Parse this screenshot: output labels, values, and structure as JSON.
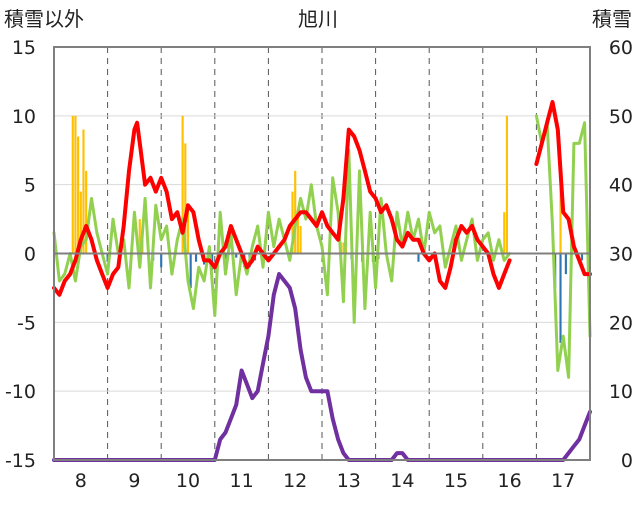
{
  "chart_data": {
    "type": "line",
    "title": "旭川",
    "ylabel_left": "積雪以外",
    "ylabel_right": "積雪",
    "ylim_left": [
      -15,
      15
    ],
    "ylim_right": [
      0,
      60
    ],
    "xlim": [
      7.5,
      17.5
    ],
    "y_ticks_left": [
      "15",
      "10",
      "5",
      "0",
      "-5",
      "-10",
      "-15"
    ],
    "y_ticks_right": [
      "60",
      "50",
      "40",
      "30",
      "20",
      "10",
      "0"
    ],
    "x_ticks": [
      "8",
      "9",
      "10",
      "11",
      "12",
      "13",
      "14",
      "15",
      "16",
      "17"
    ],
    "grid": true,
    "series_colors": {
      "temperature": "#ff0000",
      "temp_change": "#92d050",
      "precip_pos": "#ffc000",
      "precip_neg": "#2e75b6",
      "snow_depth": "#7030a0"
    },
    "series": [
      {
        "key": "temperature",
        "axis": "left",
        "x": [
          7.5,
          7.6,
          7.7,
          7.8,
          7.9,
          8.0,
          8.1,
          8.2,
          8.3,
          8.4,
          8.5,
          8.6,
          8.7,
          8.8,
          8.9,
          9.0,
          9.05,
          9.1,
          9.2,
          9.3,
          9.4,
          9.5,
          9.6,
          9.7,
          9.8,
          9.9,
          10.0,
          10.1,
          10.2,
          10.3,
          10.4,
          10.5,
          10.6,
          10.7,
          10.8,
          10.9,
          11.0,
          11.1,
          11.2,
          11.3,
          11.4,
          11.5,
          11.6,
          11.7,
          11.8,
          11.9,
          12.0,
          12.1,
          12.2,
          12.3,
          12.4,
          12.5,
          12.6,
          12.7,
          12.8,
          12.9,
          13.0,
          13.1,
          13.2,
          13.3,
          13.4,
          13.5,
          13.6,
          13.7,
          13.8,
          13.9,
          14.0,
          14.1,
          14.2,
          14.3,
          14.4,
          14.5,
          14.6,
          14.7,
          14.8,
          14.9,
          15.0,
          15.1,
          15.2,
          15.3,
          15.4,
          15.5,
          15.6,
          15.7,
          15.8,
          15.9,
          16.0
        ],
        "y": [
          -2.5,
          -3.0,
          -2.0,
          -1.5,
          -0.5,
          1.0,
          2.0,
          1.0,
          -0.5,
          -1.5,
          -2.5,
          -1.5,
          -1.0,
          2.0,
          6.0,
          9.0,
          9.5,
          8.0,
          5.0,
          5.5,
          4.5,
          5.5,
          4.5,
          2.5,
          3.0,
          1.5,
          3.5,
          3.0,
          1.0,
          -0.5,
          -0.5,
          -1.0,
          0.0,
          0.5,
          2.0,
          1.0,
          0.0,
          -1.0,
          -0.5,
          0.5,
          0.0,
          -0.5,
          0.0,
          0.5,
          1.0,
          2.0,
          2.5,
          3.0,
          3.0,
          2.5,
          2.0,
          3.0,
          2.0,
          1.5,
          1.0,
          4.0,
          9.0,
          8.5,
          7.5,
          6.0,
          4.5,
          4.0,
          3.0,
          3.5,
          2.5,
          1.0,
          0.5,
          1.5,
          1.0,
          1.0,
          0.0,
          -0.5,
          0.0,
          -2.0,
          -2.5,
          -1.0,
          1.0,
          2.0,
          1.5,
          2.0,
          1.0,
          0.5,
          0.0,
          -1.5,
          -2.5,
          -1.5,
          -0.5
        ]
      },
      {
        "key": "temperature_2",
        "axis": "left",
        "x": [
          16.5,
          16.6,
          16.7,
          16.8,
          16.9,
          17.0,
          17.1,
          17.2,
          17.3,
          17.4,
          17.5
        ],
        "y": [
          6.5,
          8.0,
          9.5,
          11.0,
          9.0,
          3.0,
          2.5,
          0.5,
          -0.5,
          -1.5,
          -1.5
        ]
      },
      {
        "key": "temp_change",
        "axis": "left",
        "x": [
          7.5,
          7.6,
          7.7,
          7.8,
          7.9,
          8.0,
          8.1,
          8.2,
          8.3,
          8.4,
          8.5,
          8.6,
          8.7,
          8.8,
          8.9,
          9.0,
          9.1,
          9.2,
          9.3,
          9.4,
          9.5,
          9.6,
          9.7,
          9.8,
          9.9,
          10.0,
          10.1,
          10.2,
          10.3,
          10.4,
          10.5,
          10.6,
          10.7,
          10.8,
          10.9,
          11.0,
          11.1,
          11.2,
          11.3,
          11.4,
          11.5,
          11.6,
          11.7,
          11.8,
          11.9,
          12.0,
          12.1,
          12.2,
          12.3,
          12.4,
          12.5,
          12.6,
          12.7,
          12.8,
          12.9,
          13.0,
          13.1,
          13.2,
          13.3,
          13.4,
          13.5,
          13.6,
          13.7,
          13.8,
          13.9,
          14.0,
          14.1,
          14.2,
          14.3,
          14.4,
          14.5,
          14.6,
          14.7,
          14.8,
          14.9,
          15.0,
          15.1,
          15.2,
          15.3,
          15.4,
          15.5,
          15.6,
          15.7,
          15.8,
          15.9,
          16.0
        ],
        "y": [
          1.5,
          -2.0,
          -1.5,
          0.0,
          -2.0,
          0.5,
          1.0,
          4.0,
          1.5,
          0.0,
          -1.5,
          2.5,
          0.0,
          1.0,
          -2.5,
          3.0,
          -1.0,
          4.0,
          -2.5,
          3.5,
          1.0,
          2.0,
          -1.5,
          1.0,
          2.5,
          -2.0,
          -4.0,
          -1.0,
          -2.0,
          0.5,
          -4.5,
          3.0,
          -1.5,
          1.5,
          -3.0,
          0.0,
          -1.5,
          0.5,
          2.0,
          -1.0,
          3.0,
          0.5,
          2.5,
          1.0,
          -0.5,
          2.0,
          4.0,
          2.5,
          5.0,
          2.0,
          0.5,
          -3.0,
          5.5,
          3.0,
          -3.5,
          7.5,
          -5.0,
          6.0,
          -4.0,
          3.0,
          -2.5,
          4.0,
          0.0,
          -2.0,
          3.0,
          0.5,
          3.0,
          1.0,
          2.5,
          0.0,
          3.0,
          1.5,
          2.0,
          -1.0,
          0.5,
          2.0,
          -0.5,
          1.0,
          2.5,
          -0.5,
          1.0,
          1.5,
          -0.5,
          1.0,
          -0.5,
          0.0
        ]
      },
      {
        "key": "temp_change_2",
        "axis": "left",
        "x": [
          16.5,
          16.6,
          16.7,
          16.8,
          16.9,
          17.0,
          17.1,
          17.2,
          17.3,
          17.4,
          17.5
        ],
        "y": [
          10.0,
          8.0,
          9.5,
          2.0,
          -8.5,
          -6.0,
          -9.0,
          8.0,
          8.0,
          9.5,
          -6.0
        ]
      },
      {
        "key": "snow_depth",
        "axis": "right",
        "x": [
          7.5,
          8.0,
          9.0,
          10.0,
          10.5,
          10.6,
          10.7,
          10.8,
          10.9,
          11.0,
          11.1,
          11.2,
          11.3,
          11.4,
          11.5,
          11.6,
          11.7,
          11.8,
          11.9,
          12.0,
          12.1,
          12.2,
          12.3,
          12.4,
          12.5,
          12.6,
          12.7,
          12.8,
          12.9,
          13.0,
          13.5,
          13.8,
          13.9,
          14.0,
          14.1,
          14.2,
          15.0,
          16.0,
          16.5,
          17.0,
          17.2,
          17.3,
          17.4,
          17.5
        ],
        "y": [
          0,
          0,
          0,
          0,
          0,
          3,
          4,
          6,
          8,
          13,
          11,
          9,
          10,
          14,
          18,
          24,
          27,
          26,
          25,
          22,
          16,
          12,
          10,
          10,
          10,
          10,
          6,
          3,
          1,
          0,
          0,
          0,
          1,
          1,
          0,
          0,
          0,
          0,
          0,
          0,
          2,
          3,
          5,
          7
        ]
      }
    ],
    "bars": {
      "axis": "left",
      "width": 0.04,
      "items": [
        {
          "x": 7.85,
          "y": 10.0
        },
        {
          "x": 7.9,
          "y": 10.0
        },
        {
          "x": 7.95,
          "y": 8.5
        },
        {
          "x": 8.0,
          "y": 4.5
        },
        {
          "x": 8.05,
          "y": 9.0
        },
        {
          "x": 8.1,
          "y": 6.0
        },
        {
          "x": 9.1,
          "y": 2.5
        },
        {
          "x": 9.15,
          "y": 1.0
        },
        {
          "x": 9.9,
          "y": 10.0
        },
        {
          "x": 9.95,
          "y": 8.0
        },
        {
          "x": 10.0,
          "y": 3.5
        },
        {
          "x": 12.0,
          "y": 6.0
        },
        {
          "x": 12.05,
          "y": 3.0
        },
        {
          "x": 12.1,
          "y": 2.0
        },
        {
          "x": 11.95,
          "y": 4.5
        },
        {
          "x": 12.85,
          "y": 0.8
        },
        {
          "x": 12.9,
          "y": 0.8
        },
        {
          "x": 12.95,
          "y": 0.8
        },
        {
          "x": 15.9,
          "y": 3.0
        },
        {
          "x": 15.95,
          "y": 10.0
        },
        {
          "x": 16.95,
          "y": 7.0
        },
        {
          "x": 8.5,
          "y": -0.6
        },
        {
          "x": 9.35,
          "y": -0.5
        },
        {
          "x": 9.5,
          "y": -1.0
        },
        {
          "x": 10.05,
          "y": -2.5
        },
        {
          "x": 10.15,
          "y": -0.6
        },
        {
          "x": 10.3,
          "y": -0.8
        },
        {
          "x": 10.45,
          "y": -1.2
        },
        {
          "x": 10.7,
          "y": -0.4
        },
        {
          "x": 10.9,
          "y": -0.3
        },
        {
          "x": 11.05,
          "y": -1.0
        },
        {
          "x": 11.15,
          "y": -1.0
        },
        {
          "x": 11.25,
          "y": -0.5
        },
        {
          "x": 13.05,
          "y": -0.4
        },
        {
          "x": 13.25,
          "y": -0.6
        },
        {
          "x": 13.35,
          "y": -0.8
        },
        {
          "x": 13.45,
          "y": -0.6
        },
        {
          "x": 13.55,
          "y": -0.4
        },
        {
          "x": 14.3,
          "y": -0.6
        },
        {
          "x": 16.85,
          "y": -2.5
        },
        {
          "x": 16.95,
          "y": -6.5
        },
        {
          "x": 17.05,
          "y": -1.5
        },
        {
          "x": 17.15,
          "y": -1.0
        },
        {
          "x": 17.35,
          "y": -0.5
        }
      ]
    }
  }
}
